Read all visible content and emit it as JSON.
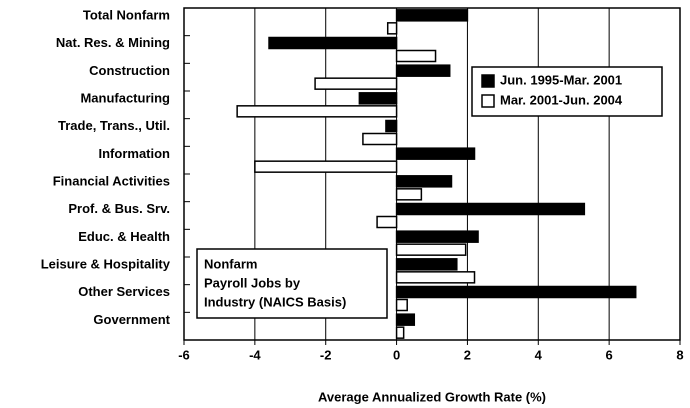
{
  "chart_data": {
    "type": "hbar",
    "x_label": "Average Annualized Growth Rate (%)",
    "annotation": [
      "Nonfarm",
      "Payroll Jobs by",
      "Industry (NAICS Basis)"
    ],
    "categories": [
      "Total Nonfarm",
      "Nat. Res. & Mining",
      "Construction",
      "Manufacturing",
      "Trade, Trans., Util.",
      "Information",
      "Financial Activities",
      "Prof. & Bus. Srv.",
      "Educ. & Health",
      "Leisure & Hospitality",
      "Other Services",
      "Government"
    ],
    "series": [
      {
        "name": "Jun. 1995-Mar. 2001",
        "color": "#000000",
        "values": [
          2.0,
          -3.6,
          1.5,
          -1.05,
          -0.3,
          2.2,
          1.55,
          5.3,
          2.3,
          1.7,
          6.75,
          0.5
        ]
      },
      {
        "name": "Mar. 2001-Jun. 2004",
        "color": "#ffffff",
        "values": [
          -0.25,
          1.1,
          -2.3,
          -4.5,
          -0.95,
          -4.0,
          0.7,
          -0.55,
          1.95,
          2.2,
          0.3,
          0.2
        ]
      }
    ],
    "xlim": [
      -6,
      8
    ],
    "xticks": [
      -6,
      -4,
      -2,
      0,
      2,
      4,
      6,
      8
    ],
    "grid": true,
    "legend": "upper right"
  }
}
